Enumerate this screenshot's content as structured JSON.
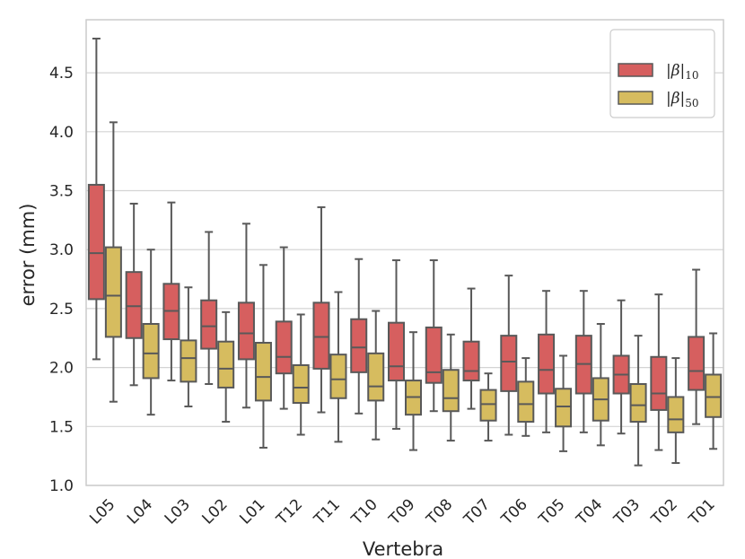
{
  "chart_data": {
    "type": "boxplot",
    "title": "",
    "xlabel": "Vertebra",
    "ylabel": "error (mm)",
    "ylim": [
      1.0,
      4.95
    ],
    "yticks": [
      "1.0",
      "1.5",
      "2.0",
      "2.5",
      "3.0",
      "3.5",
      "4.0",
      "4.5"
    ],
    "grid": true,
    "legend_position": "top-right",
    "categories": [
      "L05",
      "L04",
      "L03",
      "L02",
      "L01",
      "T12",
      "T11",
      "T10",
      "T09",
      "T08",
      "T07",
      "T06",
      "T05",
      "T04",
      "T03",
      "T02",
      "T01"
    ],
    "series": [
      {
        "name": "|β|",
        "subscript": "10",
        "color": "#d65f5f",
        "boxes": [
          {
            "whislo": 2.07,
            "q1": 2.58,
            "med": 2.97,
            "q3": 3.55,
            "whishi": 4.79
          },
          {
            "whislo": 1.85,
            "q1": 2.25,
            "med": 2.52,
            "q3": 2.81,
            "whishi": 3.39
          },
          {
            "whislo": 1.89,
            "q1": 2.24,
            "med": 2.48,
            "q3": 2.71,
            "whishi": 3.4
          },
          {
            "whislo": 1.86,
            "q1": 2.16,
            "med": 2.35,
            "q3": 2.57,
            "whishi": 3.15
          },
          {
            "whislo": 1.66,
            "q1": 2.07,
            "med": 2.29,
            "q3": 2.55,
            "whishi": 3.22
          },
          {
            "whislo": 1.65,
            "q1": 1.95,
            "med": 2.09,
            "q3": 2.39,
            "whishi": 3.02
          },
          {
            "whislo": 1.62,
            "q1": 1.99,
            "med": 2.26,
            "q3": 2.55,
            "whishi": 3.36
          },
          {
            "whislo": 1.61,
            "q1": 1.96,
            "med": 2.17,
            "q3": 2.41,
            "whishi": 2.92
          },
          {
            "whislo": 1.48,
            "q1": 1.89,
            "med": 2.01,
            "q3": 2.38,
            "whishi": 2.91
          },
          {
            "whislo": 1.63,
            "q1": 1.87,
            "med": 1.96,
            "q3": 2.34,
            "whishi": 2.91
          },
          {
            "whislo": 1.65,
            "q1": 1.89,
            "med": 1.97,
            "q3": 2.22,
            "whishi": 2.67
          },
          {
            "whislo": 1.43,
            "q1": 1.8,
            "med": 2.05,
            "q3": 2.27,
            "whishi": 2.78
          },
          {
            "whislo": 1.45,
            "q1": 1.78,
            "med": 1.98,
            "q3": 2.28,
            "whishi": 2.65
          },
          {
            "whislo": 1.45,
            "q1": 1.78,
            "med": 2.03,
            "q3": 2.27,
            "whishi": 2.65
          },
          {
            "whislo": 1.44,
            "q1": 1.78,
            "med": 1.94,
            "q3": 2.1,
            "whishi": 2.57
          },
          {
            "whislo": 1.3,
            "q1": 1.64,
            "med": 1.78,
            "q3": 2.09,
            "whishi": 2.62
          },
          {
            "whislo": 1.52,
            "q1": 1.81,
            "med": 1.97,
            "q3": 2.26,
            "whishi": 2.83
          }
        ]
      },
      {
        "name": "|β|",
        "subscript": "50",
        "color": "#d6bc5f",
        "boxes": [
          {
            "whislo": 1.71,
            "q1": 2.26,
            "med": 2.61,
            "q3": 3.02,
            "whishi": 4.08
          },
          {
            "whislo": 1.6,
            "q1": 1.91,
            "med": 2.12,
            "q3": 2.37,
            "whishi": 3.0
          },
          {
            "whislo": 1.67,
            "q1": 1.88,
            "med": 2.08,
            "q3": 2.23,
            "whishi": 2.68
          },
          {
            "whislo": 1.54,
            "q1": 1.83,
            "med": 1.99,
            "q3": 2.22,
            "whishi": 2.47
          },
          {
            "whislo": 1.32,
            "q1": 1.72,
            "med": 1.92,
            "q3": 2.21,
            "whishi": 2.87
          },
          {
            "whislo": 1.43,
            "q1": 1.7,
            "med": 1.83,
            "q3": 2.02,
            "whishi": 2.45
          },
          {
            "whislo": 1.37,
            "q1": 1.74,
            "med": 1.9,
            "q3": 2.11,
            "whishi": 2.64
          },
          {
            "whislo": 1.39,
            "q1": 1.72,
            "med": 1.84,
            "q3": 2.12,
            "whishi": 2.48
          },
          {
            "whislo": 1.3,
            "q1": 1.6,
            "med": 1.75,
            "q3": 1.89,
            "whishi": 2.3
          },
          {
            "whislo": 1.38,
            "q1": 1.63,
            "med": 1.74,
            "q3": 1.98,
            "whishi": 2.28
          },
          {
            "whislo": 1.38,
            "q1": 1.55,
            "med": 1.69,
            "q3": 1.81,
            "whishi": 1.95
          },
          {
            "whislo": 1.42,
            "q1": 1.54,
            "med": 1.69,
            "q3": 1.88,
            "whishi": 2.08
          },
          {
            "whislo": 1.29,
            "q1": 1.5,
            "med": 1.67,
            "q3": 1.82,
            "whishi": 2.1
          },
          {
            "whislo": 1.34,
            "q1": 1.55,
            "med": 1.73,
            "q3": 1.91,
            "whishi": 2.37
          },
          {
            "whislo": 1.17,
            "q1": 1.54,
            "med": 1.68,
            "q3": 1.86,
            "whishi": 2.27
          },
          {
            "whislo": 1.19,
            "q1": 1.45,
            "med": 1.56,
            "q3": 1.75,
            "whishi": 2.08
          },
          {
            "whislo": 1.31,
            "q1": 1.58,
            "med": 1.75,
            "q3": 1.94,
            "whishi": 2.29
          }
        ]
      }
    ]
  },
  "colors": {
    "grid": "#d4d4d4",
    "frame": "#cccccc",
    "line": "#595959",
    "text": "#262626"
  }
}
